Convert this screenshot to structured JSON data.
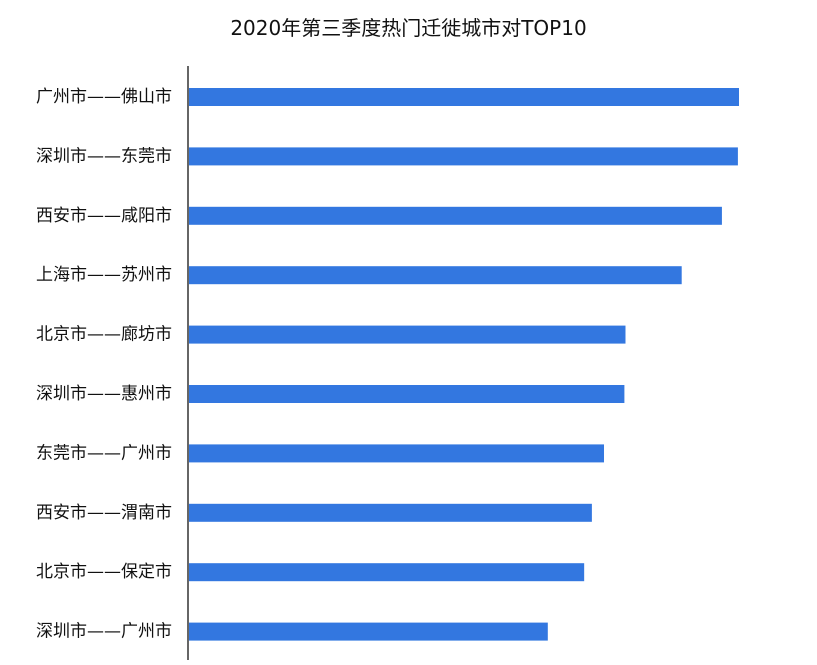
{
  "chart_data": {
    "type": "bar",
    "orientation": "horizontal",
    "title": "2020年第三季度热门迁徙城市对TOP10",
    "categories": [
      "广州市——佛山市",
      "深圳市——东莞市",
      "西安市——咸阳市",
      "上海市——苏州市",
      "北京市——廊坊市",
      "深圳市——惠州市",
      "东莞市——广州市",
      "西安市——渭南市",
      "北京市——保定市",
      "深圳市——广州市"
    ],
    "values": [
      100,
      99.8,
      96.9,
      89.6,
      79.4,
      79.2,
      75.5,
      73.3,
      71.9,
      65.3
    ],
    "xlim": [
      0,
      100
    ],
    "xlabel": "",
    "ylabel": "",
    "grid": false,
    "legend": "none",
    "bar_color": "#3377e0",
    "axis_color": "#333333"
  }
}
